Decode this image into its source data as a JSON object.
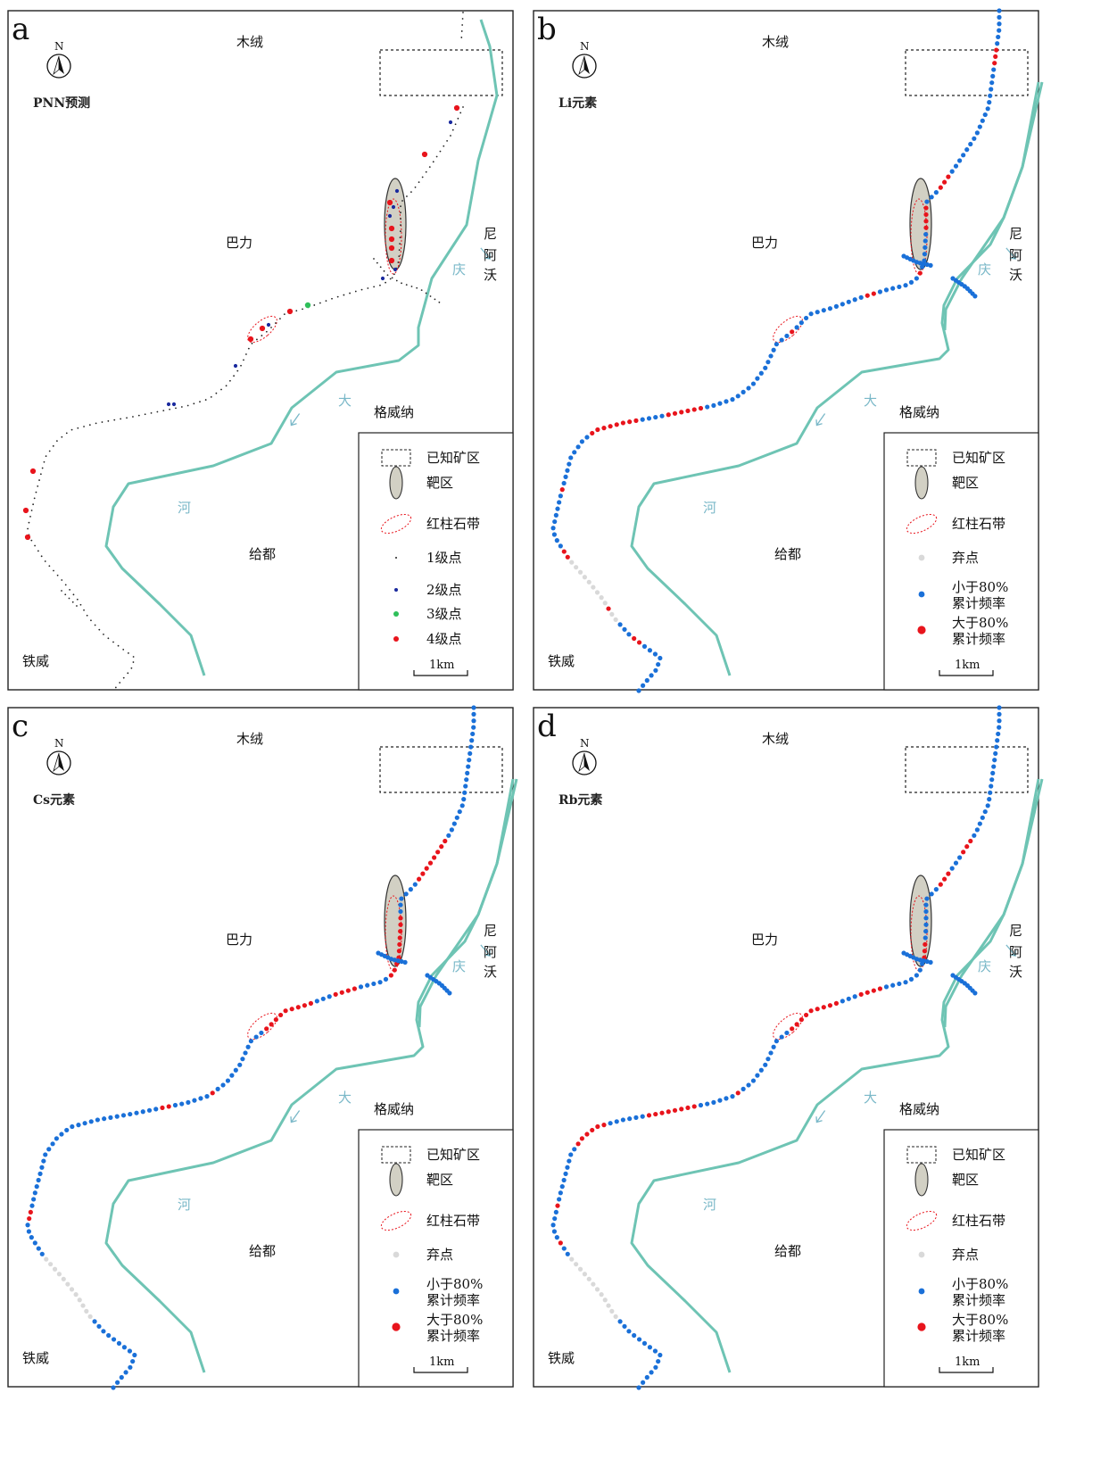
{
  "panels": [
    {
      "letter": "a",
      "title": "PNN预测",
      "mode": "pnn",
      "legend": [
        {
          "symbol": "dash-rect",
          "label": "已知矿区"
        },
        {
          "symbol": "target-ellipse",
          "label": "靶区"
        },
        {
          "symbol": "red-dash-ellipse",
          "label": "红柱石带"
        },
        {
          "symbol": "dot-tiny",
          "label": "1级点"
        },
        {
          "symbol": "dot-blue",
          "label": "2级点"
        },
        {
          "symbol": "dot-green",
          "label": "3级点"
        },
        {
          "symbol": "dot-red",
          "label": "4级点"
        }
      ]
    },
    {
      "letter": "b",
      "title": "Li元素",
      "mode": "element",
      "legend": [
        {
          "symbol": "dash-rect",
          "label": "已知矿区"
        },
        {
          "symbol": "target-ellipse",
          "label": "靶区"
        },
        {
          "symbol": "red-dash-ellipse",
          "label": "红柱石带"
        },
        {
          "symbol": "dot-grey",
          "label": "弃点"
        },
        {
          "symbol": "dot-blue",
          "label": "小于80%",
          "label2": "累计频率"
        },
        {
          "symbol": "dot-red",
          "label": "大于80%",
          "label2": "累计频率"
        }
      ]
    },
    {
      "letter": "c",
      "title": "Cs元素",
      "mode": "element",
      "legend": [
        {
          "symbol": "dash-rect",
          "label": "已知矿区"
        },
        {
          "symbol": "target-ellipse",
          "label": "靶区"
        },
        {
          "symbol": "red-dash-ellipse",
          "label": "红柱石带"
        },
        {
          "symbol": "dot-grey",
          "label": "弃点"
        },
        {
          "symbol": "dot-blue",
          "label": "小于80%",
          "label2": "累计频率"
        },
        {
          "symbol": "dot-red",
          "label": "大于80%",
          "label2": "累计频率"
        }
      ]
    },
    {
      "letter": "d",
      "title": "Rb元素",
      "mode": "element",
      "legend": [
        {
          "symbol": "dash-rect",
          "label": "已知矿区"
        },
        {
          "symbol": "target-ellipse",
          "label": "靶区"
        },
        {
          "symbol": "red-dash-ellipse",
          "label": "红柱石带"
        },
        {
          "symbol": "dot-grey",
          "label": "弃点"
        },
        {
          "symbol": "dot-blue",
          "label": "小于80%",
          "label2": "累计频率"
        },
        {
          "symbol": "dot-red",
          "label": "大于80%",
          "label2": "累计频率"
        }
      ]
    }
  ],
  "place_names": {
    "muxu": "木绒",
    "bali": "巴力",
    "geweina": "格威纳",
    "geidu": "给都",
    "tiewei": "铁威",
    "ni": "尼",
    "a": "阿",
    "wo": "沃"
  },
  "river_labels": {
    "qing": "庆",
    "da": "大",
    "he": "河"
  },
  "north_label": "N",
  "scale_label": "1km",
  "colors": {
    "river": "#6ec4b4",
    "river_label": "#7ab8c8",
    "blue": "#1a70d8",
    "red": "#e8141c",
    "grey": "#d9d9d9",
    "green": "#2fbf5a",
    "navy": "#1a2a9e",
    "ellipse_fill": "#d2d0c4",
    "frame": "#222222"
  }
}
